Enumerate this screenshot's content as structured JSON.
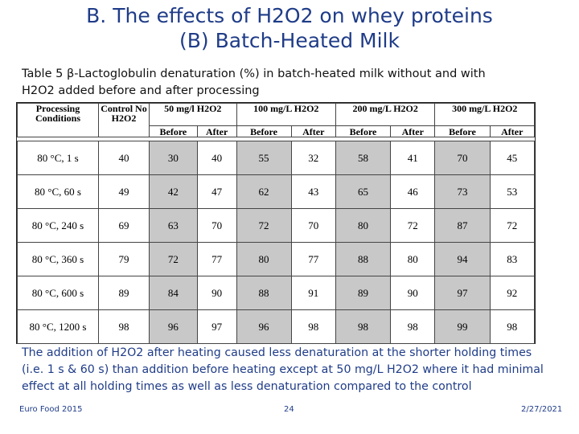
{
  "slide": {
    "title_line1": "B. The effects of H2O2 on whey proteins",
    "title_line2": "(B) Batch-Heated Milk",
    "caption_line1": "Table 5 β-Lactoglobulin denaturation (%) in batch-heated milk without and with",
    "caption_line2": "H2O2 added before and after processing"
  },
  "table": {
    "header": {
      "conditions": "Processing Conditions",
      "control": "Control No H2O2",
      "concentrations": [
        "50 mg/l H2O2",
        "100 mg/L H2O2",
        "200 mg/L H2O2",
        "300 mg/L H2O2"
      ],
      "before": "Before",
      "after": "After"
    },
    "rows": [
      {
        "condition": "80 °C, 1 s",
        "control": "40",
        "values": [
          "30",
          "40",
          "55",
          "32",
          "58",
          "41",
          "70",
          "45"
        ]
      },
      {
        "condition": "80 °C, 60 s",
        "control": "49",
        "values": [
          "42",
          "47",
          "62",
          "43",
          "65",
          "46",
          "73",
          "53"
        ]
      },
      {
        "condition": "80 °C, 240 s",
        "control": "69",
        "values": [
          "63",
          "70",
          "72",
          "70",
          "80",
          "72",
          "87",
          "72"
        ]
      },
      {
        "condition": "80 °C, 360 s",
        "control": "79",
        "values": [
          "72",
          "77",
          "80",
          "77",
          "88",
          "80",
          "94",
          "83"
        ]
      },
      {
        "condition": "80 °C, 600 s",
        "control": "89",
        "values": [
          "84",
          "90",
          "88",
          "91",
          "89",
          "90",
          "97",
          "92"
        ]
      },
      {
        "condition": "80 °C, 1200 s",
        "control": "98",
        "values": [
          "96",
          "97",
          "96",
          "98",
          "98",
          "98",
          "99",
          "98"
        ]
      }
    ]
  },
  "note": {
    "line1": "The addition of H2O2 after heating caused less denaturation at the shorter holding times",
    "line2": "(i.e. 1 s & 60 s) than addition before heating except at 50 mg/L H2O2 where it had minimal",
    "line3": "effect at all holding times as well as less denaturation  compared to the control"
  },
  "footer": {
    "left": "Euro Food 2015",
    "center": "24",
    "right": "2/27/2021"
  }
}
